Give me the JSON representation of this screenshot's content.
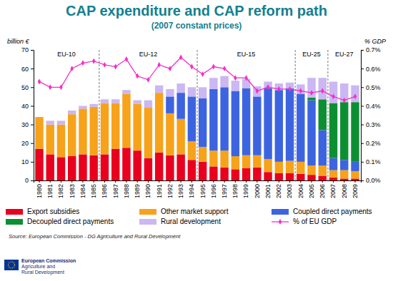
{
  "chart_data": {
    "type": "bar",
    "stacked": true,
    "title": "CAP expenditure and CAP reform path",
    "subtitle": "(2007 constant prices)",
    "y_label": "billion €",
    "y2_label": "% GDP",
    "source": "Source: European Commission - DG Agriculture and Rural Development",
    "legend": "bottom",
    "categories": [
      "1980",
      "1981",
      "1982",
      "1983",
      "1984",
      "1985",
      "1986",
      "1987",
      "1988",
      "1989",
      "1990",
      "1991",
      "1992",
      "1993",
      "1994",
      "1995",
      "1996",
      "1997",
      "1998",
      "1999",
      "2000",
      "2001",
      "2002",
      "2003",
      "2004",
      "2005",
      "2006",
      "2007",
      "2008",
      "2009"
    ],
    "ylim": [
      0,
      70
    ],
    "yticks": [
      0,
      10,
      20,
      30,
      40,
      50,
      60,
      70
    ],
    "y2lim": [
      0,
      0.7
    ],
    "y2ticks": [
      {
        "value": 0,
        "label": "0.0%"
      },
      {
        "value": 0.1,
        "label": "0.1%"
      },
      {
        "value": 0.2,
        "label": "0.2%"
      },
      {
        "value": 0.3,
        "label": "0.3%"
      },
      {
        "value": 0.4,
        "label": "0.4%"
      },
      {
        "value": 0.5,
        "label": "0.5%"
      },
      {
        "value": 0.6,
        "label": "0.6%"
      },
      {
        "value": 0.7,
        "label": "0.7%"
      }
    ],
    "periods": [
      {
        "label": "EU-10",
        "start": "1980",
        "end": "1985"
      },
      {
        "label": "EU-12",
        "start": "1986",
        "end": "1994"
      },
      {
        "label": "EU-15",
        "start": "1995",
        "end": "2003"
      },
      {
        "label": "EU-25",
        "start": "2004",
        "end": "2006"
      },
      {
        "label": "EU-27",
        "start": "2007",
        "end": "2009"
      }
    ],
    "series": [
      {
        "name": "Export subsidies",
        "type": "bar",
        "color": "#e8001e",
        "values": [
          17,
          14,
          12.5,
          13,
          14,
          13.5,
          14,
          17,
          17.5,
          16,
          12,
          15,
          13.5,
          14,
          11,
          10,
          7.5,
          7,
          6,
          6.5,
          7,
          4.5,
          4,
          4,
          3.5,
          3,
          2.5,
          1.5,
          1,
          1
        ]
      },
      {
        "name": "Other market support",
        "type": "bar",
        "color": "#f7a21b",
        "values": [
          17,
          16,
          17.5,
          22.5,
          24.5,
          26,
          27.5,
          24.5,
          29,
          25,
          27,
          32,
          22.5,
          19,
          10,
          8,
          8.5,
          9,
          7,
          7,
          6.5,
          7,
          6,
          6.5,
          6.5,
          5,
          5.5,
          4,
          4.5,
          4
        ]
      },
      {
        "name": "Coupled direct payments",
        "type": "bar",
        "color": "#3d64e0",
        "values": [
          0,
          0,
          0,
          0,
          0,
          0,
          0,
          0,
          0,
          0,
          0,
          0,
          9,
          14,
          24,
          26,
          33,
          34,
          35,
          36,
          31.5,
          38,
          38.5,
          39,
          36.5,
          35,
          19,
          6.5,
          5.5,
          5
        ]
      },
      {
        "name": "Decoupled direct payments",
        "type": "bar",
        "color": "#0c8f32",
        "values": [
          0,
          0,
          0,
          0,
          0,
          0,
          0,
          0,
          0,
          0,
          0,
          0,
          0,
          0,
          0,
          0,
          0,
          0,
          0,
          0,
          0,
          0,
          0,
          0,
          0,
          1.5,
          16.5,
          29.5,
          31,
          32
        ]
      },
      {
        "name": "Rural development",
        "type": "bar",
        "color": "#cbb7f2",
        "values": [
          0,
          2,
          2,
          2,
          1.5,
          1.5,
          2,
          2,
          2,
          2,
          4,
          4,
          4,
          5,
          5,
          6,
          6,
          6,
          5.5,
          5,
          5.5,
          3.5,
          3.5,
          3,
          5,
          10.5,
          11.5,
          11.5,
          10,
          9
        ]
      },
      {
        "name": "% of EU GDP",
        "type": "line",
        "axis": "y2",
        "marker": "diamond",
        "color": "#f230c8",
        "values": [
          0.53,
          0.5,
          0.5,
          0.6,
          0.63,
          0.64,
          0.62,
          0.61,
          0.65,
          0.56,
          0.54,
          0.62,
          0.6,
          0.66,
          0.61,
          0.57,
          0.61,
          0.6,
          0.55,
          0.55,
          0.48,
          0.5,
          0.49,
          0.49,
          0.48,
          0.47,
          0.48,
          0.45,
          0.43,
          0.45
        ]
      }
    ]
  },
  "footer": {
    "logo": [
      "European Commission",
      "Agriculture and",
      "Rural Development"
    ]
  }
}
